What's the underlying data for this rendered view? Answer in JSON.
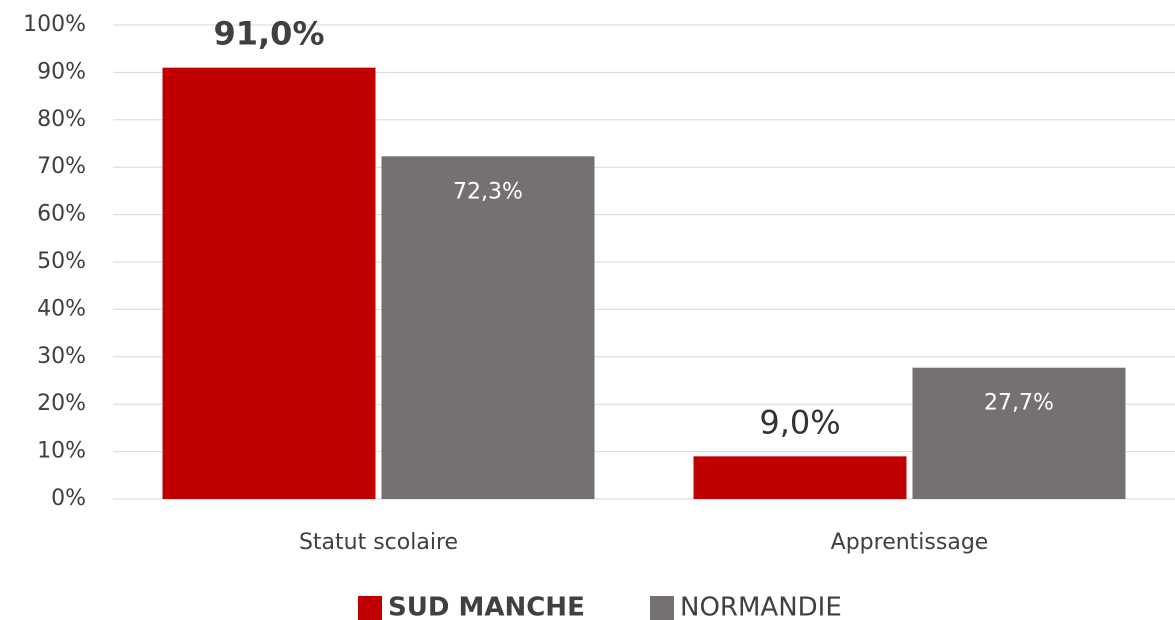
{
  "chart_data": {
    "type": "bar",
    "categories": [
      "Statut scolaire",
      "Apprentissage"
    ],
    "series": [
      {
        "name": "SUD MANCHE",
        "color": "#c00000",
        "values": [
          91.0,
          9.0
        ],
        "value_labels": [
          "91,0%",
          "9,0%"
        ]
      },
      {
        "name": "NORMANDIE",
        "color": "#767171",
        "values": [
          72.3,
          27.7
        ],
        "value_labels": [
          "72,3%",
          "27,7%"
        ]
      }
    ],
    "ylim": [
      0,
      100
    ],
    "yticks": [
      {
        "value": 0,
        "label": "0%"
      },
      {
        "value": 10,
        "label": "10%"
      },
      {
        "value": 20,
        "label": "20%"
      },
      {
        "value": 30,
        "label": "30%"
      },
      {
        "value": 40,
        "label": "40%"
      },
      {
        "value": 50,
        "label": "50%"
      },
      {
        "value": 60,
        "label": "60%"
      },
      {
        "value": 70,
        "label": "70%"
      },
      {
        "value": 80,
        "label": "80%"
      },
      {
        "value": 90,
        "label": "90%"
      },
      {
        "value": 100,
        "label": "100%"
      }
    ],
    "grid": true,
    "legend": "bottom"
  }
}
